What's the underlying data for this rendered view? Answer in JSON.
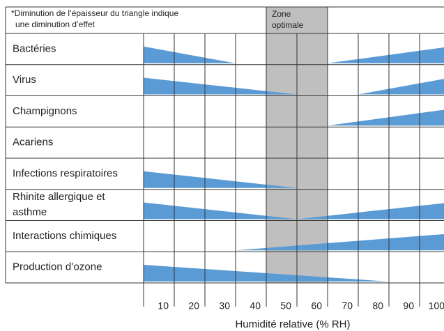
{
  "chart_data": {
    "type": "triangle",
    "note": [
      "*Diminution de l’épaisseur du triangle indique",
      "une diminution d’effet"
    ],
    "zone_label": [
      "Zone",
      "optimale"
    ],
    "zone": [
      40,
      60
    ],
    "xlabel": "Humidité relative (% RH)",
    "xlim": [
      0,
      100
    ],
    "xticks": [
      10,
      20,
      30,
      40,
      50,
      60,
      70,
      80,
      90,
      100
    ],
    "color": "#5b9bd5",
    "rows": [
      {
        "label": [
          "Bactéries"
        ],
        "decrease_end": 30,
        "increase_start": 60
      },
      {
        "label": [
          "Virus"
        ],
        "decrease_end": 50,
        "increase_start": 70
      },
      {
        "label": [
          "Champignons"
        ],
        "decrease_end": null,
        "increase_start": 60
      },
      {
        "label": [
          "Acariens"
        ],
        "decrease_end": null,
        "increase_start": null
      },
      {
        "label": [
          "Infections respiratoires"
        ],
        "decrease_end": 50,
        "increase_start": null
      },
      {
        "label": [
          "Rhinite allergique et",
          "asthme"
        ],
        "decrease_end": 50,
        "increase_start": 50
      },
      {
        "label": [
          "Interactions chimiques"
        ],
        "decrease_end": null,
        "increase_start": 30
      },
      {
        "label": [
          "Production d’ozone"
        ],
        "decrease_end": 80,
        "increase_start": null
      }
    ]
  }
}
